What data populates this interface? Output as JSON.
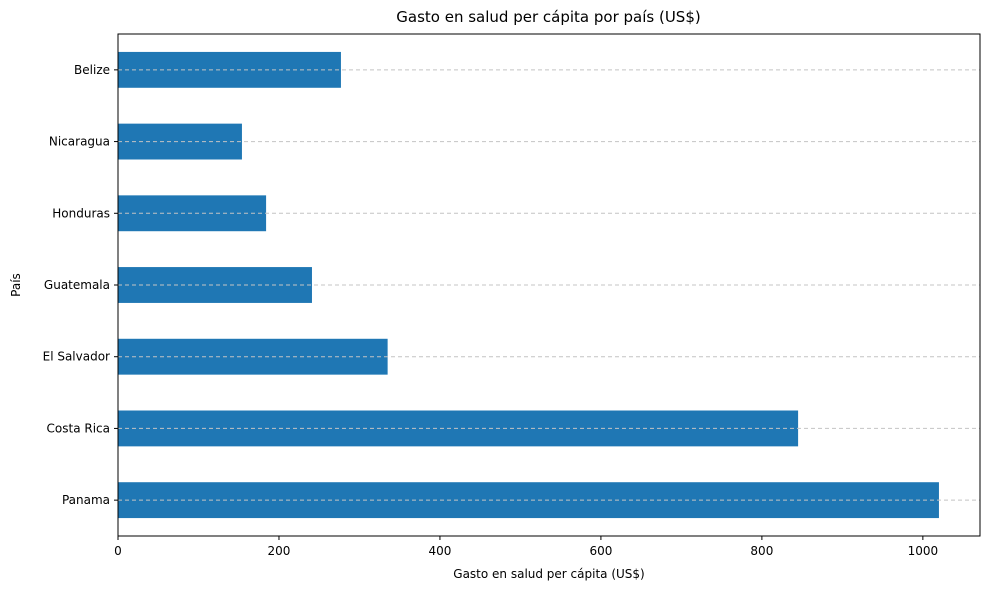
{
  "chart_data": {
    "type": "bar",
    "orientation": "horizontal",
    "title": "Gasto en salud per cápita por país (US$)",
    "xlabel": "Gasto en salud per cápita (US$)",
    "ylabel": "País",
    "categories": [
      "Panama",
      "Costa Rica",
      "El Salvador",
      "Guatemala",
      "Honduras",
      "Nicaragua",
      "Belize"
    ],
    "values": [
      1020,
      845,
      335,
      241,
      184,
      154,
      277
    ],
    "xlim": [
      0,
      1071
    ],
    "xticks": [
      0,
      200,
      400,
      600,
      800,
      1000
    ],
    "grid": "horizontal dashed",
    "colors": {
      "bar": "#1f77b4",
      "grid": "#c4c4c4",
      "axis": "#000000"
    }
  }
}
